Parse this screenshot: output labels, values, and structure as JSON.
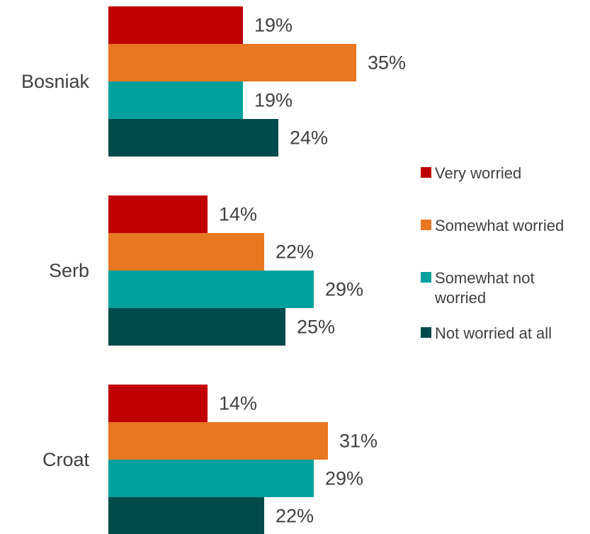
{
  "chart_data": {
    "type": "bar",
    "orientation": "horizontal",
    "categories": [
      "Bosniak",
      "Serb",
      "Croat"
    ],
    "series": [
      {
        "name": "Very worried",
        "color": "#c00000",
        "values": [
          19,
          14,
          14
        ]
      },
      {
        "name": "Somewhat worried",
        "color": "#e87722",
        "values": [
          35,
          22,
          31
        ]
      },
      {
        "name": "Somewhat not worried",
        "color": "#00a19c",
        "values": [
          19,
          29,
          29
        ]
      },
      {
        "name": "Not worried at all",
        "color": "#004b4b",
        "values": [
          24,
          25,
          22
        ]
      }
    ],
    "value_format": "percent",
    "xlim": [
      0,
      40
    ],
    "grid": false,
    "legend_position": "right"
  }
}
